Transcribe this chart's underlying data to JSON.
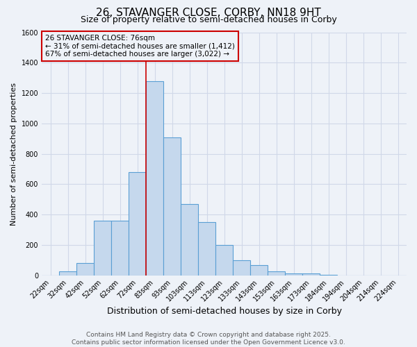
{
  "title1": "26, STAVANGER CLOSE, CORBY, NN18 9HT",
  "title2": "Size of property relative to semi-detached houses in Corby",
  "xlabel": "Distribution of semi-detached houses by size in Corby",
  "ylabel": "Number of semi-detached properties",
  "bin_labels": [
    "22sqm",
    "32sqm",
    "42sqm",
    "52sqm",
    "62sqm",
    "72sqm",
    "83sqm",
    "93sqm",
    "103sqm",
    "113sqm",
    "123sqm",
    "133sqm",
    "143sqm",
    "153sqm",
    "163sqm",
    "173sqm",
    "184sqm",
    "194sqm",
    "204sqm",
    "214sqm",
    "224sqm"
  ],
  "bar_values": [
    0,
    25,
    80,
    360,
    360,
    680,
    1280,
    910,
    470,
    350,
    200,
    100,
    65,
    25,
    10,
    10,
    5,
    0,
    0,
    0,
    0
  ],
  "bar_color": "#c5d8ed",
  "bar_edge_color": "#5a9fd4",
  "grid_color": "#d0d8e8",
  "vline_color": "#cc0000",
  "ylim": [
    0,
    1600
  ],
  "annotation_text": "26 STAVANGER CLOSE: 76sqm\n← 31% of semi-detached houses are smaller (1,412)\n67% of semi-detached houses are larger (3,022) →",
  "annotation_box_color": "#cc0000",
  "footer1": "Contains HM Land Registry data © Crown copyright and database right 2025.",
  "footer2": "Contains public sector information licensed under the Open Government Licence v3.0.",
  "bg_color": "#eef2f8",
  "title_fontsize": 11,
  "subtitle_fontsize": 9,
  "annotation_fontsize": 7.5,
  "footer_fontsize": 6.5,
  "ylabel_fontsize": 8,
  "xlabel_fontsize": 9,
  "tick_fontsize": 7
}
